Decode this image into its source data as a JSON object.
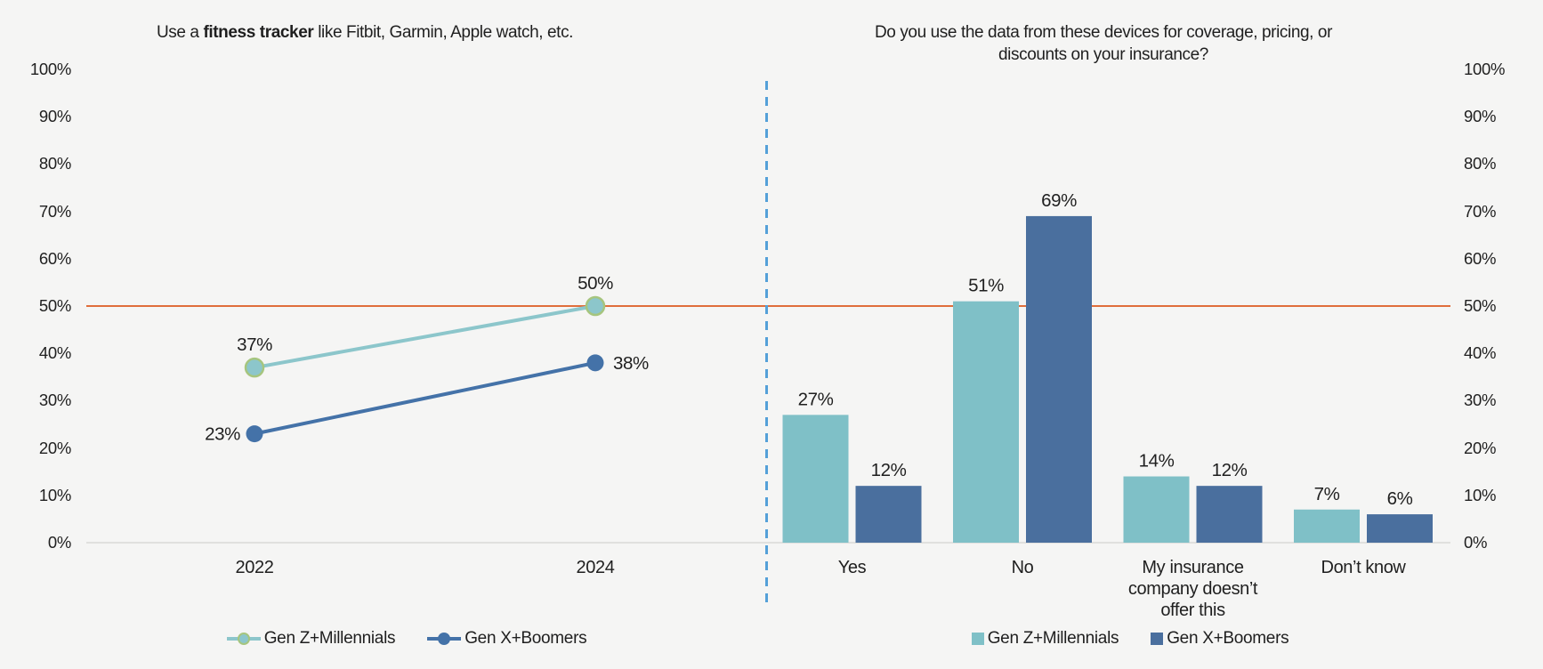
{
  "page": {
    "background": "#f5f5f4"
  },
  "colors": {
    "teal_bar": "#7fc0c7",
    "teal_line": "#8cc6cb",
    "blue_bar": "#4a6f9e",
    "blue_line": "#4472a8",
    "teal_marker_ring": "#a6c57e",
    "reference_line": "#e06e3b",
    "divider_dashed": "#54a0d8",
    "axis_line": "#d9d9d6",
    "text": "#1f1f1f"
  },
  "left_chart": {
    "title": {
      "prefix": "Use a ",
      "bold": "fitness tracker",
      "suffix": " like Fitbit, Garmin, Apple watch, etc."
    }
  },
  "right_chart": {
    "title_lines": [
      "Do you use the data from these devices for coverage, pricing, or",
      "discounts on your insurance?"
    ]
  },
  "y_axis": {
    "ticks": [
      {
        "label": "100%",
        "value": 100
      },
      {
        "label": "90%",
        "value": 90
      },
      {
        "label": "80%",
        "value": 80
      },
      {
        "label": "70%",
        "value": 70
      },
      {
        "label": "60%",
        "value": 60
      },
      {
        "label": "50%",
        "value": 50
      },
      {
        "label": "40%",
        "value": 40
      },
      {
        "label": "30%",
        "value": 30
      },
      {
        "label": "20%",
        "value": 20
      },
      {
        "label": "10%",
        "value": 10
      },
      {
        "label": "0%",
        "value": 0
      }
    ]
  },
  "chart_data": [
    {
      "type": "line",
      "title": "Use a fitness tracker like Fitbit, Garmin, Apple watch, etc.",
      "categories": [
        "2022",
        "2024"
      ],
      "series": [
        {
          "name": "Gen Z+Millennials",
          "values": [
            37,
            50
          ],
          "labels": [
            "37%",
            "50%"
          ]
        },
        {
          "name": "Gen X+Boomers",
          "values": [
            23,
            38
          ],
          "labels": [
            "23%",
            "38%"
          ]
        }
      ],
      "ylim": [
        0,
        100
      ],
      "y_ticks_percent": true,
      "reference_line_value": 50,
      "grid": false,
      "legend_position": "bottom"
    },
    {
      "type": "bar",
      "title": "Do you use the data from these devices for coverage, pricing, or discounts on your insurance?",
      "categories": [
        "Yes",
        "No",
        "My insurance\ncompany doesn’t\noffer this",
        "Don’t know"
      ],
      "series": [
        {
          "name": "Gen Z+Millennials",
          "values": [
            27,
            51,
            14,
            7
          ],
          "labels": [
            "27%",
            "51%",
            "14%",
            "7%"
          ]
        },
        {
          "name": "Gen X+Boomers",
          "values": [
            12,
            69,
            12,
            6
          ],
          "labels": [
            "12%",
            "69%",
            "12%",
            "6%"
          ]
        }
      ],
      "ylim": [
        0,
        100
      ],
      "y_ticks_percent": true,
      "reference_line_value": 50,
      "grid": false,
      "legend_position": "bottom"
    }
  ]
}
